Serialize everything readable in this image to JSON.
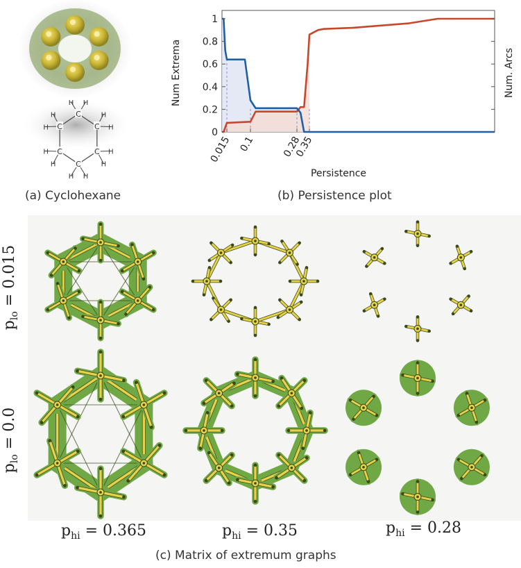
{
  "panel_a": {
    "caption": "(a)  Cyclohexane",
    "atoms": {
      "carbon": "C",
      "hydrogen": "H"
    }
  },
  "panel_b": {
    "caption": "(b)  Persistence plot",
    "left_axis_label": "Num Extrema",
    "right_axis_label": "Num. Arcs",
    "x_axis_label": "Persistence",
    "y_ticks": [
      "0",
      "0.2",
      "0.4",
      "0.6",
      "0.8",
      "1"
    ],
    "x_ticks": [
      "0.015",
      "0.1",
      "0.28",
      "0.35"
    ],
    "colors": {
      "extrema": "#1f5fa8",
      "arcs": "#c8472a",
      "extrema_fill": "#dfe3f2",
      "arcs_fill": "#f5dcd6"
    }
  },
  "chart_data": {
    "type": "line",
    "x_axis": "Persistence",
    "x_ticks": [
      0.015,
      0.1,
      0.28,
      0.35
    ],
    "ylim": [
      0,
      1
    ],
    "series": [
      {
        "name": "Num Extrema",
        "x": [
          0.0,
          0.005,
          0.01,
          0.015,
          0.03,
          0.08,
          0.1,
          0.12,
          0.28,
          0.3,
          0.32,
          0.34,
          0.35,
          1.0
        ],
        "y": [
          1.0,
          1.0,
          0.72,
          0.64,
          0.64,
          0.64,
          0.28,
          0.21,
          0.21,
          0.17,
          0.0,
          0.0,
          0.0,
          0.0
        ]
      },
      {
        "name": "Num. Arcs",
        "x": [
          0.0,
          0.005,
          0.015,
          0.1,
          0.12,
          0.28,
          0.3,
          0.32,
          0.34,
          0.35,
          0.38,
          0.4,
          0.5,
          0.6,
          0.7,
          0.8,
          0.9,
          1.0
        ],
        "y": [
          0.0,
          0.0,
          0.08,
          0.09,
          0.18,
          0.18,
          0.22,
          0.22,
          0.6,
          0.86,
          0.9,
          0.91,
          0.92,
          0.94,
          0.96,
          1.0,
          1.0,
          1.0
        ]
      }
    ]
  },
  "panel_c": {
    "caption": "(c)  Matrix of extremum graphs",
    "row_labels": [
      {
        "base": "p",
        "sub": "lo",
        "value": "=  0.015"
      },
      {
        "base": "p",
        "sub": "lo",
        "value": "=  0.0"
      }
    ],
    "col_labels": [
      {
        "base": "p",
        "sub": "hi",
        "value": "=  0.365"
      },
      {
        "base": "p",
        "sub": "hi",
        "value": "=  0.35"
      },
      {
        "base": "p",
        "sub": "hi",
        "value": "=  0.28"
      }
    ],
    "colors": {
      "graph_fill": "#6fa845",
      "node_fill": "#e6d24a",
      "edge": "#3a4a1a"
    }
  }
}
